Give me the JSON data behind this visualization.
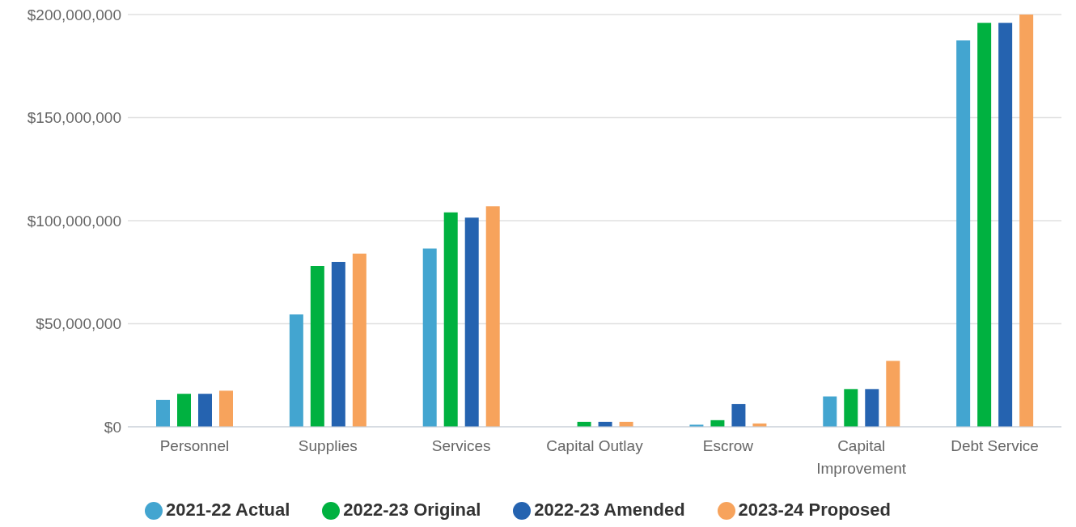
{
  "chart_data": {
    "type": "bar",
    "categories": [
      "Personnel",
      "Supplies",
      "Services",
      "Capital Outlay",
      "Escrow",
      "Capital Improvement",
      "Debt Service"
    ],
    "series": [
      {
        "name": "2021-22 Actual",
        "color": "#43a5d0",
        "values": [
          13000000,
          54500000,
          86500000,
          null,
          1000000,
          14700000,
          187500000
        ]
      },
      {
        "name": "2022-23 Original",
        "color": "#00b140",
        "values": [
          16000000,
          78000000,
          104000000,
          2400000,
          3200000,
          18300000,
          196000000
        ]
      },
      {
        "name": "2022-23 Amended",
        "color": "#2563b0",
        "values": [
          16000000,
          80000000,
          101500000,
          2400000,
          11000000,
          18300000,
          196000000
        ]
      },
      {
        "name": "2023-24 Proposed",
        "color": "#f7a35c",
        "values": [
          17500000,
          84000000,
          107000000,
          2400000,
          1600000,
          32000000,
          200000000
        ]
      }
    ],
    "ylim": [
      0,
      200000000
    ],
    "yticks": [
      {
        "value": 0,
        "label": "$0"
      },
      {
        "value": 50000000,
        "label": "$50,000,000"
      },
      {
        "value": 100000000,
        "label": "$100,000,000"
      },
      {
        "value": 150000000,
        "label": "$150,000,000"
      },
      {
        "value": 200000000,
        "label": "$200,000,000"
      }
    ],
    "grid": "y",
    "legend": "bottom"
  }
}
